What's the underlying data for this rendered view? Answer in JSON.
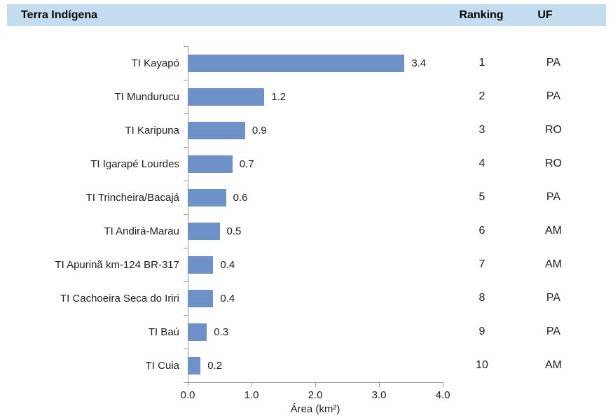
{
  "table_header": {
    "terra": "Terra Indígena",
    "ranking": "Ranking",
    "uf": "UF"
  },
  "chart_data": {
    "type": "bar",
    "orientation": "horizontal",
    "title": "",
    "xlabel": "Área (km²)",
    "xlim": [
      0.0,
      4.0
    ],
    "x_ticks": [
      "0.0",
      "1.0",
      "2.0",
      "3.0",
      "4.0"
    ],
    "grid": false,
    "legend": "none",
    "rows": [
      {
        "label": "TI Kayapó",
        "value": 3.4,
        "value_label": "3.4",
        "ranking": "1",
        "uf": "PA"
      },
      {
        "label": "TI Mundurucu",
        "value": 1.2,
        "value_label": "1.2",
        "ranking": "2",
        "uf": "PA"
      },
      {
        "label": "TI Karipuna",
        "value": 0.9,
        "value_label": "0.9",
        "ranking": "3",
        "uf": "RO"
      },
      {
        "label": "TI Igarapé Lourdes",
        "value": 0.7,
        "value_label": "0.7",
        "ranking": "4",
        "uf": "RO"
      },
      {
        "label": "TI Trincheira/Bacajá",
        "value": 0.6,
        "value_label": "0.6",
        "ranking": "5",
        "uf": "PA"
      },
      {
        "label": "TI Andirá-Marau",
        "value": 0.5,
        "value_label": "0.5",
        "ranking": "6",
        "uf": "AM"
      },
      {
        "label": "TI Apurinã km-124 BR-317",
        "value": 0.4,
        "value_label": "0.4",
        "ranking": "7",
        "uf": "AM"
      },
      {
        "label": "TI Cachoeira Seca do Iriri",
        "value": 0.4,
        "value_label": "0.4",
        "ranking": "8",
        "uf": "PA"
      },
      {
        "label": "TI Baú",
        "value": 0.3,
        "value_label": "0.3",
        "ranking": "9",
        "uf": "PA"
      },
      {
        "label": "TI Cuia",
        "value": 0.2,
        "value_label": "0.2",
        "ranking": "10",
        "uf": "AM"
      }
    ],
    "colors": {
      "bar": "#6e92c8",
      "header_background": "#c3dcf0",
      "axis": "#9b9b9b",
      "text": "#1f1f1f"
    }
  }
}
